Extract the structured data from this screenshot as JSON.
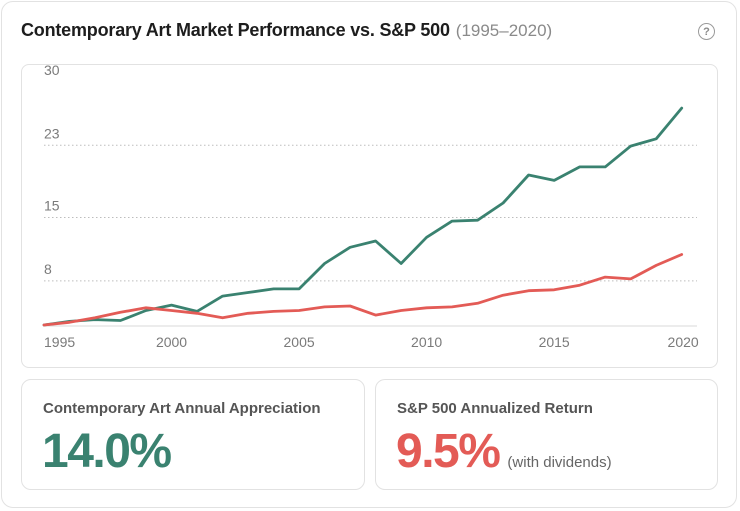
{
  "header": {
    "title": "Contemporary Art Market Performance vs. S&P 500",
    "subtitle": "(1995–2020)",
    "help_glyph": "?"
  },
  "colors": {
    "art": "#3a8270",
    "sp500": "#e35b56",
    "grid": "#bdbdbd",
    "tick": "#7a7a7a"
  },
  "chart_data": {
    "type": "line",
    "title": "Contemporary Art Market Performance vs. S&P 500",
    "subtitle": "(1995–2020)",
    "xlim": [
      1995,
      2020.6
    ],
    "ylim": [
      3,
      30
    ],
    "y_ticks": [
      30,
      23,
      15,
      8
    ],
    "x_ticks": [
      1995,
      2000,
      2005,
      2010,
      2015,
      2020
    ],
    "grid": "horizontal dotted",
    "series": [
      {
        "key": "art",
        "x": [
          1995,
          1996,
          1997,
          1998,
          1999,
          2000,
          2001,
          2002,
          2003,
          2004,
          2005,
          2006,
          2007,
          2008,
          2009,
          2010,
          2011,
          2012,
          2013,
          2014,
          2015,
          2016,
          2017,
          2018,
          2019,
          2020
        ],
        "values": [
          3.0,
          3.4,
          3.6,
          3.5,
          4.6,
          5.2,
          4.5,
          6.2,
          6.6,
          7.0,
          7.0,
          9.8,
          11.6,
          12.3,
          9.8,
          12.7,
          14.5,
          14.6,
          16.5,
          19.6,
          19.0,
          20.5,
          20.5,
          22.8,
          23.6,
          27.0
        ]
      },
      {
        "key": "sp500",
        "x": [
          1995,
          1996,
          1997,
          1998,
          1999,
          2000,
          2001,
          2002,
          2003,
          2004,
          2005,
          2006,
          2007,
          2008,
          2009,
          2010,
          2011,
          2012,
          2013,
          2014,
          2015,
          2016,
          2017,
          2018,
          2019,
          2020
        ],
        "values": [
          3.0,
          3.3,
          3.8,
          4.4,
          4.9,
          4.6,
          4.3,
          3.8,
          4.3,
          4.5,
          4.6,
          5.0,
          5.1,
          4.1,
          4.6,
          4.9,
          5.0,
          5.4,
          6.3,
          6.8,
          6.9,
          7.4,
          8.3,
          8.1,
          9.6,
          10.8
        ]
      }
    ]
  },
  "stats": {
    "art": {
      "label": "Contemporary Art Annual Appreciation",
      "value": "14.0%"
    },
    "sp500": {
      "label": "S&P 500 Annualized Return",
      "value": "9.5%",
      "note": "(with dividends)"
    }
  }
}
